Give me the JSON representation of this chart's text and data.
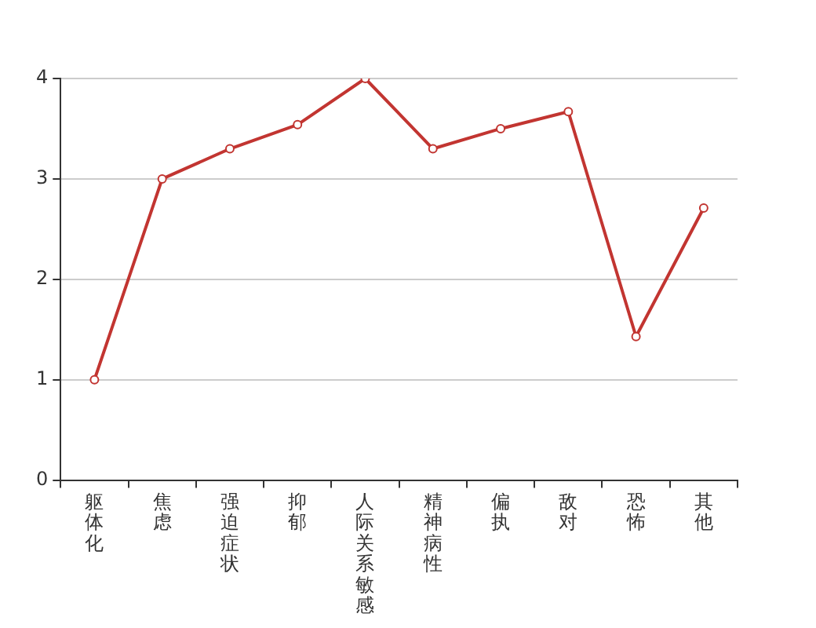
{
  "chart_data": {
    "type": "line",
    "categories": [
      "躯体化",
      "焦虑",
      "强迫症状",
      "抑郁",
      "人际关系敏感",
      "精神病性",
      "偏执",
      "敌对",
      "恐怖",
      "其他"
    ],
    "series": [
      {
        "color": "#c23531",
        "values": [
          1.0,
          3.0,
          3.3,
          3.54,
          4.0,
          3.3,
          3.5,
          3.67,
          1.43,
          2.71
        ]
      }
    ],
    "ylim": [
      0,
      4
    ],
    "yticks": [
      0,
      1,
      2,
      3,
      4
    ],
    "grid": "y",
    "marker": "circle",
    "legend": false
  }
}
